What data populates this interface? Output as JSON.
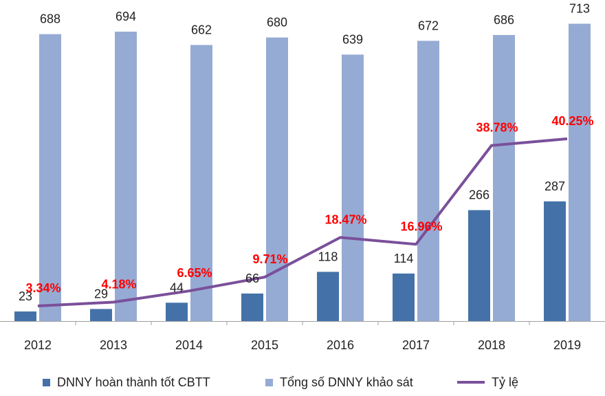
{
  "chart_data": {
    "type": "bar",
    "categories": [
      "2012",
      "2013",
      "2014",
      "2015",
      "2016",
      "2017",
      "2018",
      "2019"
    ],
    "series": [
      {
        "name": "DNNY hoàn thành tốt CBTT",
        "type": "bar",
        "color": "#4472a8",
        "values": [
          23,
          29,
          44,
          66,
          118,
          114,
          266,
          287
        ]
      },
      {
        "name": "Tổng số DNNY khảo sát",
        "type": "bar",
        "color": "#96abd4",
        "values": [
          688,
          694,
          662,
          680,
          639,
          672,
          686,
          713
        ]
      },
      {
        "name": "Tỷ lệ",
        "type": "line",
        "color": "#7a509a",
        "values": [
          3.34,
          4.18,
          6.65,
          9.71,
          18.47,
          16.96,
          38.78,
          40.25
        ],
        "labels": [
          "3.34%",
          "4.18%",
          "6.65%",
          "9.71%",
          "18.47%",
          "16.96%",
          "38.78%",
          "40.25%"
        ],
        "label_color": "#ff0000"
      }
    ],
    "ylim_bars": [
      0,
      760
    ],
    "ylim_line": [
      0,
      70
    ],
    "grid": false,
    "legend_position": "bottom"
  },
  "legend": {
    "item1": "DNNY hoàn thành tốt CBTT",
    "item2": "Tổng số DNNY khảo sát",
    "item3": "Tỷ lệ"
  }
}
